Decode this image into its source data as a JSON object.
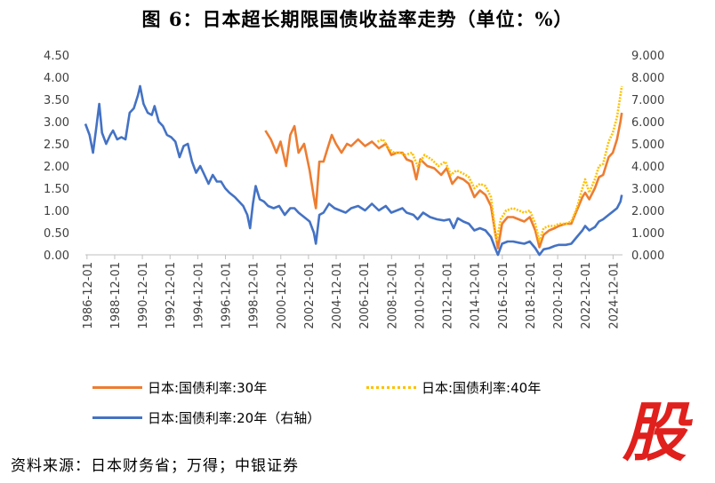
{
  "title": "图 6：日本超长期限国债收益率走势（单位：%）",
  "source": "资料来源：日本财务省；万得；中银证券",
  "watermark": {
    "text": "股",
    "color": "#e0201c"
  },
  "chart_data": {
    "type": "line",
    "left_axis": {
      "min": 0,
      "max": 4.5,
      "ticks": [
        "0.00",
        "0.50",
        "1.00",
        "1.50",
        "2.00",
        "2.50",
        "3.00",
        "3.50",
        "4.00",
        "4.50"
      ]
    },
    "right_axis": {
      "min": 0,
      "max": 9,
      "ticks": [
        "0.000",
        "1.000",
        "2.000",
        "3.000",
        "4.000",
        "5.000",
        "6.000",
        "7.000",
        "8.000",
        "9.000"
      ]
    },
    "x_ticks": [
      "1986-12-01",
      "1988-12-01",
      "1990-12-01",
      "1992-12-01",
      "1994-12-01",
      "1996-12-01",
      "1998-12-01",
      "2000-12-01",
      "2002-12-01",
      "2004-12-01",
      "2006-12-01",
      "2008-12-01",
      "2010-12-01",
      "2012-12-01",
      "2014-12-01",
      "2016-12-01",
      "2018-12-01",
      "2020-12-01",
      "2022-12-01",
      "2024-12-01"
    ],
    "x_range": [
      1986.8,
      2025.6
    ],
    "grid": false,
    "series": [
      {
        "name": "日本:国债利率:30年",
        "axis": "left",
        "color": "#ed7d31",
        "style": "solid",
        "points": [
          [
            1999.8,
            2.8
          ],
          [
            2000.2,
            2.6
          ],
          [
            2000.6,
            2.3
          ],
          [
            2000.9,
            2.55
          ],
          [
            2001.3,
            2.0
          ],
          [
            2001.6,
            2.7
          ],
          [
            2001.9,
            2.9
          ],
          [
            2002.2,
            2.3
          ],
          [
            2002.6,
            2.5
          ],
          [
            2003.0,
            1.9
          ],
          [
            2003.3,
            1.3
          ],
          [
            2003.45,
            1.05
          ],
          [
            2003.7,
            2.1
          ],
          [
            2004.0,
            2.1
          ],
          [
            2004.3,
            2.4
          ],
          [
            2004.6,
            2.7
          ],
          [
            2004.9,
            2.5
          ],
          [
            2005.3,
            2.3
          ],
          [
            2005.7,
            2.5
          ],
          [
            2006.0,
            2.45
          ],
          [
            2006.5,
            2.6
          ],
          [
            2007.0,
            2.45
          ],
          [
            2007.5,
            2.55
          ],
          [
            2008.0,
            2.4
          ],
          [
            2008.5,
            2.5
          ],
          [
            2008.9,
            2.25
          ],
          [
            2009.3,
            2.3
          ],
          [
            2009.7,
            2.3
          ],
          [
            2010.0,
            2.15
          ],
          [
            2010.4,
            2.1
          ],
          [
            2010.7,
            1.7
          ],
          [
            2011.0,
            2.15
          ],
          [
            2011.5,
            2.0
          ],
          [
            2012.0,
            1.95
          ],
          [
            2012.5,
            1.8
          ],
          [
            2012.9,
            1.95
          ],
          [
            2013.3,
            1.6
          ],
          [
            2013.7,
            1.75
          ],
          [
            2014.1,
            1.7
          ],
          [
            2014.5,
            1.6
          ],
          [
            2014.9,
            1.3
          ],
          [
            2015.3,
            1.45
          ],
          [
            2015.7,
            1.35
          ],
          [
            2016.1,
            1.1
          ],
          [
            2016.4,
            0.5
          ],
          [
            2016.6,
            0.15
          ],
          [
            2016.9,
            0.7
          ],
          [
            2017.3,
            0.85
          ],
          [
            2017.7,
            0.85
          ],
          [
            2018.1,
            0.8
          ],
          [
            2018.5,
            0.75
          ],
          [
            2018.9,
            0.85
          ],
          [
            2019.3,
            0.55
          ],
          [
            2019.6,
            0.17
          ],
          [
            2019.9,
            0.45
          ],
          [
            2020.3,
            0.55
          ],
          [
            2020.7,
            0.6
          ],
          [
            2021.0,
            0.65
          ],
          [
            2021.5,
            0.7
          ],
          [
            2021.9,
            0.7
          ],
          [
            2022.3,
            1.0
          ],
          [
            2022.7,
            1.3
          ],
          [
            2022.9,
            1.4
          ],
          [
            2023.2,
            1.25
          ],
          [
            2023.6,
            1.5
          ],
          [
            2023.9,
            1.75
          ],
          [
            2024.2,
            1.8
          ],
          [
            2024.6,
            2.2
          ],
          [
            2024.9,
            2.3
          ],
          [
            2025.2,
            2.6
          ],
          [
            2025.45,
            3.0
          ],
          [
            2025.55,
            3.2
          ]
        ]
      },
      {
        "name": "日本:国债利率:40年",
        "axis": "left",
        "color": "#ffc000",
        "style": "dotted",
        "points": [
          [
            2007.9,
            2.55
          ],
          [
            2008.3,
            2.6
          ],
          [
            2008.7,
            2.4
          ],
          [
            2009.1,
            2.3
          ],
          [
            2009.5,
            2.3
          ],
          [
            2009.9,
            2.25
          ],
          [
            2010.4,
            2.3
          ],
          [
            2010.8,
            2.0
          ],
          [
            2011.3,
            2.25
          ],
          [
            2011.8,
            2.15
          ],
          [
            2012.3,
            2.0
          ],
          [
            2012.8,
            2.1
          ],
          [
            2013.2,
            1.8
          ],
          [
            2013.6,
            1.9
          ],
          [
            2014.0,
            1.85
          ],
          [
            2014.5,
            1.75
          ],
          [
            2014.9,
            1.5
          ],
          [
            2015.3,
            1.6
          ],
          [
            2015.7,
            1.55
          ],
          [
            2016.1,
            1.3
          ],
          [
            2016.5,
            0.3
          ],
          [
            2016.8,
            0.8
          ],
          [
            2017.2,
            1.0
          ],
          [
            2017.7,
            1.05
          ],
          [
            2018.1,
            1.0
          ],
          [
            2018.5,
            0.95
          ],
          [
            2018.9,
            1.0
          ],
          [
            2019.3,
            0.7
          ],
          [
            2019.6,
            0.3
          ],
          [
            2019.9,
            0.6
          ],
          [
            2020.3,
            0.65
          ],
          [
            2020.7,
            0.65
          ],
          [
            2021.0,
            0.7
          ],
          [
            2021.5,
            0.7
          ],
          [
            2021.9,
            0.75
          ],
          [
            2022.3,
            1.05
          ],
          [
            2022.7,
            1.5
          ],
          [
            2022.9,
            1.7
          ],
          [
            2023.2,
            1.4
          ],
          [
            2023.6,
            1.7
          ],
          [
            2023.9,
            2.0
          ],
          [
            2024.2,
            2.05
          ],
          [
            2024.6,
            2.55
          ],
          [
            2024.9,
            2.75
          ],
          [
            2025.2,
            3.1
          ],
          [
            2025.45,
            3.6
          ],
          [
            2025.55,
            3.8
          ]
        ]
      },
      {
        "name": "日本:国债利率:20年（右轴）",
        "axis": "right",
        "color": "#4472c4",
        "style": "solid",
        "points": [
          [
            1986.8,
            5.9
          ],
          [
            1987.1,
            5.4
          ],
          [
            1987.35,
            4.6
          ],
          [
            1987.6,
            5.8
          ],
          [
            1987.8,
            6.8
          ],
          [
            1988.0,
            5.5
          ],
          [
            1988.3,
            5.0
          ],
          [
            1988.6,
            5.4
          ],
          [
            1988.8,
            5.6
          ],
          [
            1989.1,
            5.2
          ],
          [
            1989.4,
            5.3
          ],
          [
            1989.7,
            5.2
          ],
          [
            1990.0,
            6.4
          ],
          [
            1990.3,
            6.6
          ],
          [
            1990.6,
            7.2
          ],
          [
            1990.75,
            7.6
          ],
          [
            1991.0,
            6.8
          ],
          [
            1991.3,
            6.4
          ],
          [
            1991.6,
            6.3
          ],
          [
            1991.8,
            6.7
          ],
          [
            1992.1,
            6.0
          ],
          [
            1992.4,
            5.8
          ],
          [
            1992.7,
            5.4
          ],
          [
            1993.0,
            5.3
          ],
          [
            1993.3,
            5.1
          ],
          [
            1993.6,
            4.4
          ],
          [
            1993.9,
            4.9
          ],
          [
            1994.2,
            5.0
          ],
          [
            1994.5,
            4.2
          ],
          [
            1994.8,
            3.7
          ],
          [
            1995.1,
            4.0
          ],
          [
            1995.4,
            3.6
          ],
          [
            1995.7,
            3.2
          ],
          [
            1996.0,
            3.6
          ],
          [
            1996.3,
            3.3
          ],
          [
            1996.6,
            3.3
          ],
          [
            1996.9,
            3.0
          ],
          [
            1997.2,
            2.8
          ],
          [
            1997.6,
            2.6
          ],
          [
            1997.9,
            2.4
          ],
          [
            1998.2,
            2.2
          ],
          [
            1998.5,
            1.8
          ],
          [
            1998.7,
            1.2
          ],
          [
            1998.9,
            2.3
          ],
          [
            1999.1,
            3.1
          ],
          [
            1999.4,
            2.5
          ],
          [
            1999.7,
            2.4
          ],
          [
            2000.0,
            2.2
          ],
          [
            2000.4,
            2.1
          ],
          [
            2000.8,
            2.2
          ],
          [
            2001.2,
            1.8
          ],
          [
            2001.6,
            2.1
          ],
          [
            2001.9,
            2.1
          ],
          [
            2002.2,
            1.9
          ],
          [
            2002.6,
            1.7
          ],
          [
            2003.0,
            1.5
          ],
          [
            2003.3,
            1.0
          ],
          [
            2003.45,
            0.5
          ],
          [
            2003.7,
            1.8
          ],
          [
            2004.0,
            1.9
          ],
          [
            2004.4,
            2.3
          ],
          [
            2004.8,
            2.1
          ],
          [
            2005.2,
            2.0
          ],
          [
            2005.6,
            1.9
          ],
          [
            2006.0,
            2.1
          ],
          [
            2006.5,
            2.2
          ],
          [
            2007.0,
            2.0
          ],
          [
            2007.5,
            2.3
          ],
          [
            2008.0,
            2.0
          ],
          [
            2008.5,
            2.2
          ],
          [
            2008.9,
            1.9
          ],
          [
            2009.3,
            2.0
          ],
          [
            2009.7,
            2.1
          ],
          [
            2010.0,
            1.9
          ],
          [
            2010.5,
            1.8
          ],
          [
            2010.8,
            1.6
          ],
          [
            2011.2,
            1.9
          ],
          [
            2011.7,
            1.7
          ],
          [
            2012.2,
            1.6
          ],
          [
            2012.7,
            1.55
          ],
          [
            2013.1,
            1.6
          ],
          [
            2013.4,
            1.2
          ],
          [
            2013.7,
            1.65
          ],
          [
            2014.1,
            1.5
          ],
          [
            2014.5,
            1.4
          ],
          [
            2014.9,
            1.1
          ],
          [
            2015.3,
            1.2
          ],
          [
            2015.7,
            1.1
          ],
          [
            2016.1,
            0.8
          ],
          [
            2016.4,
            0.3
          ],
          [
            2016.6,
            0.0
          ],
          [
            2016.9,
            0.5
          ],
          [
            2017.3,
            0.6
          ],
          [
            2017.7,
            0.6
          ],
          [
            2018.1,
            0.55
          ],
          [
            2018.5,
            0.5
          ],
          [
            2018.9,
            0.6
          ],
          [
            2019.3,
            0.3
          ],
          [
            2019.6,
            -0.1
          ],
          [
            2019.9,
            0.25
          ],
          [
            2020.3,
            0.3
          ],
          [
            2020.7,
            0.4
          ],
          [
            2021.0,
            0.45
          ],
          [
            2021.5,
            0.45
          ],
          [
            2021.9,
            0.5
          ],
          [
            2022.3,
            0.8
          ],
          [
            2022.7,
            1.1
          ],
          [
            2022.9,
            1.3
          ],
          [
            2023.2,
            1.1
          ],
          [
            2023.6,
            1.25
          ],
          [
            2023.9,
            1.5
          ],
          [
            2024.2,
            1.6
          ],
          [
            2024.6,
            1.8
          ],
          [
            2024.9,
            1.95
          ],
          [
            2025.2,
            2.1
          ],
          [
            2025.45,
            2.4
          ],
          [
            2025.55,
            2.7
          ]
        ]
      }
    ]
  }
}
